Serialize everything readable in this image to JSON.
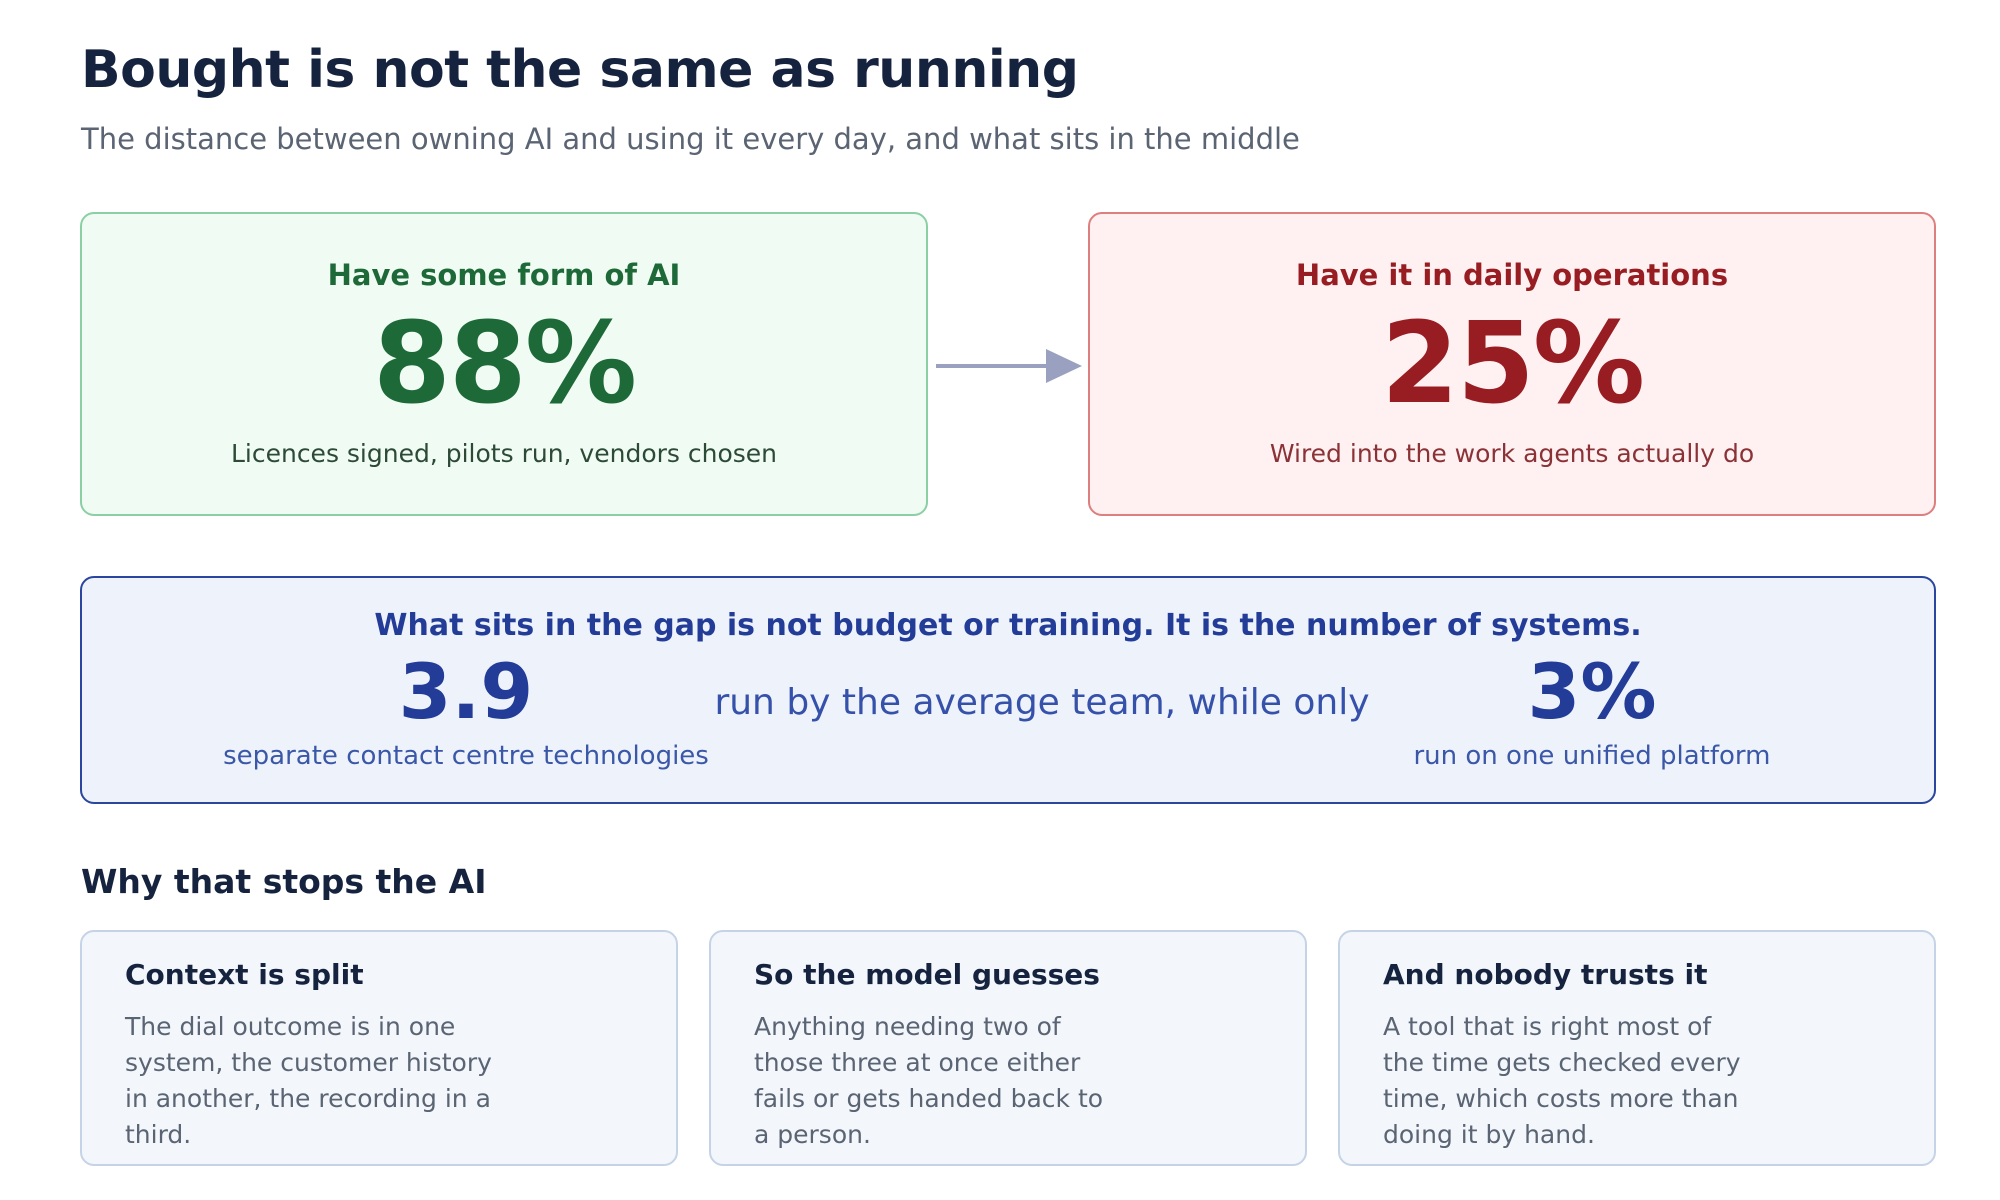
{
  "header": {
    "title": "Bought is not the same as running",
    "subtitle": "The distance between owning AI and using it every day, and what sits in the middle"
  },
  "stats": {
    "left": {
      "label": "Have some form of AI",
      "value": "88%",
      "description": "Licences signed, pilots run, vendors chosen"
    },
    "right": {
      "label": "Have it in daily operations",
      "value": "25%",
      "description": "Wired into the work agents actually do"
    }
  },
  "gap": {
    "heading": "What sits in the gap is not budget or training. It is the number of systems.",
    "left_value": "3.9",
    "left_description": "separate contact centre technologies",
    "middle_text": "run by the average team, while only",
    "right_value": "3%",
    "right_description": "run on one unified platform"
  },
  "reasons": {
    "heading": "Why that stops the AI",
    "items": [
      {
        "title": "Context is split",
        "body": "The dial outcome is in one system, the customer history in another, the recording in a third."
      },
      {
        "title": "So the model guesses",
        "body": "Anything needing two of those three at once either fails or gets handed back to a person."
      },
      {
        "title": "And nobody trusts it",
        "body": "A tool that is right most of the time gets checked every time, which costs more than doing it by hand."
      }
    ]
  },
  "colors": {
    "green": "#1e6938",
    "red": "#981d22",
    "blue": "#223c98",
    "arrow": "#9aa0bf"
  }
}
